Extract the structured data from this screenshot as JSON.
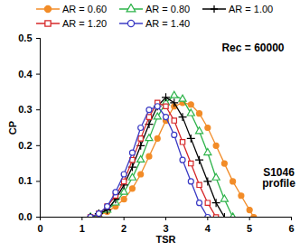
{
  "chart_data": {
    "type": "line",
    "x_label": "TSR",
    "y_label": "CP",
    "annotations": [
      "Rec = 60000",
      "S1046\nprofile"
    ],
    "legend": "top",
    "grid": false,
    "xlim": [
      0,
      6
    ],
    "xticks": [
      0,
      1,
      2,
      3,
      4,
      5,
      6
    ],
    "ylim": [
      0,
      0.5
    ],
    "yticks": [
      {
        "value": 0,
        "label": "0.0"
      },
      0.1,
      0.2,
      0.3,
      0.4,
      0.5
    ],
    "series": [
      {
        "name": "AR = 0.60",
        "color": "#f28c28",
        "marker": "circle-filled",
        "x": [
          1.2,
          1.4,
          1.6,
          1.8,
          2.0,
          2.2,
          2.4,
          2.6,
          2.8,
          3.0,
          3.2,
          3.4,
          3.6,
          3.8,
          4.0,
          4.2,
          4.4,
          4.6,
          4.8,
          5.0,
          5.1
        ],
        "values": [
          0.0,
          0.005,
          0.015,
          0.03,
          0.05,
          0.08,
          0.12,
          0.17,
          0.22,
          0.27,
          0.31,
          0.32,
          0.315,
          0.29,
          0.25,
          0.2,
          0.15,
          0.1,
          0.06,
          0.02,
          0.0
        ]
      },
      {
        "name": "AR = 0.80",
        "color": "#2db34a",
        "marker": "triangle-open",
        "x": [
          1.2,
          1.4,
          1.6,
          1.8,
          2.0,
          2.2,
          2.4,
          2.6,
          2.8,
          3.0,
          3.2,
          3.4,
          3.6,
          3.8,
          4.0,
          4.2,
          4.4,
          4.6
        ],
        "values": [
          0.0,
          0.005,
          0.02,
          0.04,
          0.07,
          0.11,
          0.16,
          0.22,
          0.28,
          0.32,
          0.34,
          0.33,
          0.29,
          0.24,
          0.18,
          0.11,
          0.05,
          0.0
        ]
      },
      {
        "name": "AR = 1.00",
        "color": "#000000",
        "marker": "plus",
        "x": [
          1.2,
          1.4,
          1.6,
          1.8,
          2.0,
          2.2,
          2.4,
          2.6,
          2.8,
          3.0,
          3.2,
          3.4,
          3.6,
          3.8,
          4.0,
          4.2,
          4.4
        ],
        "values": [
          0.0,
          0.01,
          0.02,
          0.05,
          0.09,
          0.14,
          0.2,
          0.26,
          0.31,
          0.335,
          0.32,
          0.28,
          0.22,
          0.16,
          0.1,
          0.04,
          0.0
        ]
      },
      {
        "name": "AR = 1.20",
        "color": "#d62728",
        "marker": "square-open",
        "x": [
          1.2,
          1.4,
          1.6,
          1.8,
          2.0,
          2.2,
          2.4,
          2.6,
          2.8,
          3.0,
          3.2,
          3.4,
          3.6,
          3.8,
          4.0,
          4.2
        ],
        "values": [
          0.0,
          0.01,
          0.03,
          0.06,
          0.1,
          0.16,
          0.22,
          0.28,
          0.32,
          0.31,
          0.27,
          0.21,
          0.15,
          0.09,
          0.04,
          0.0
        ]
      },
      {
        "name": "AR = 1.40",
        "color": "#3b3bc4",
        "marker": "circle-open",
        "x": [
          1.2,
          1.4,
          1.6,
          1.8,
          2.0,
          2.2,
          2.4,
          2.6,
          2.8,
          3.0,
          3.2,
          3.4,
          3.6,
          3.8,
          4.0
        ],
        "values": [
          0.0,
          0.01,
          0.03,
          0.07,
          0.12,
          0.18,
          0.25,
          0.3,
          0.31,
          0.28,
          0.23,
          0.16,
          0.1,
          0.04,
          0.0
        ]
      }
    ]
  }
}
